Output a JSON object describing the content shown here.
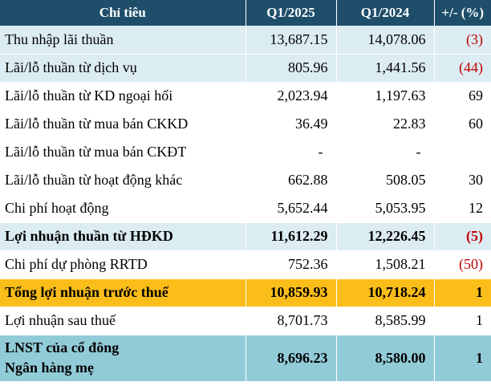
{
  "header": {
    "col_item": "Chỉ tiêu",
    "col_q1_2025": "Q1/2025",
    "col_q1_2024": "Q1/2024",
    "col_change": "+/- (%)"
  },
  "rows": [
    {
      "label": "Thu nhập lãi thuần",
      "q1_2025": "13,687.15",
      "q1_2024": "14,078.06",
      "change": "(3)"
    },
    {
      "label": "Lãi/lỗ thuần từ dịch vụ",
      "q1_2025": "805.96",
      "q1_2024": "1,441.56",
      "change": "(44)"
    },
    {
      "label": "Lãi/lỗ thuần từ KD ngoại hối",
      "q1_2025": "2,023.94",
      "q1_2024": "1,197.63",
      "change": "69"
    },
    {
      "label": "Lãi/lỗ thuần từ mua bán CKKD",
      "q1_2025": "36.49",
      "q1_2024": "22.83",
      "change": "60"
    },
    {
      "label": "Lãi/lỗ thuần từ mua bán CKĐT",
      "q1_2025": "-",
      "q1_2024": "-",
      "change": ""
    },
    {
      "label": "Lãi/lỗ thuần từ hoạt động khác",
      "q1_2025": "662.88",
      "q1_2024": "508.05",
      "change": "30"
    },
    {
      "label": "Chi phí hoạt động",
      "q1_2025": "5,652.44",
      "q1_2024": "5,053.95",
      "change": "12"
    },
    {
      "label": "Lợi nhuận thuần từ HĐKD",
      "q1_2025": "11,612.29",
      "q1_2024": "12,226.45",
      "change": "(5)"
    },
    {
      "label": "Chi phí dự phòng RRTD",
      "q1_2025": "752.36",
      "q1_2024": "1,508.21",
      "change": "(50)"
    },
    {
      "label": "Tổng lợi nhuận trước thuế",
      "q1_2025": "10,859.93",
      "q1_2024": "10,718.24",
      "change": "1"
    },
    {
      "label": "Lợi nhuận sau thuế",
      "q1_2025": "8,701.73",
      "q1_2024": "8,585.99",
      "change": "1"
    },
    {
      "label_line1": "LNST của cổ đông",
      "label_line2": "Ngân hàng mẹ",
      "q1_2025": "8,696.23",
      "q1_2024": "8,580.00",
      "change": "1"
    }
  ],
  "colors": {
    "header_bg": "#1f4e6a",
    "light_row_bg": "#dcecf3",
    "highlight_bg": "#fbbd19",
    "parent_row_bg": "#92cbd8",
    "negative_text": "#c00000"
  }
}
